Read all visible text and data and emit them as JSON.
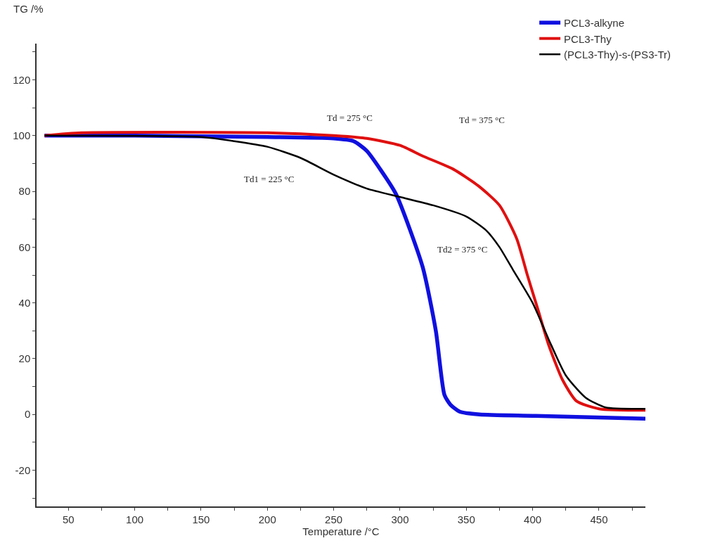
{
  "chart_data": {
    "type": "line",
    "ylabel": "TG /%",
    "xlabel": "Temperature /°C",
    "xlim": [
      26,
      485
    ],
    "ylim": [
      -33,
      133
    ],
    "xticks": [
      {
        "value": 50,
        "label": "50"
      },
      {
        "value": 75,
        "label": null
      },
      {
        "value": 100,
        "label": "100"
      },
      {
        "value": 125,
        "label": null
      },
      {
        "value": 150,
        "label": "150"
      },
      {
        "value": 175,
        "label": null
      },
      {
        "value": 200,
        "label": "200"
      },
      {
        "value": 225,
        "label": null
      },
      {
        "value": 250,
        "label": "250"
      },
      {
        "value": 275,
        "label": null
      },
      {
        "value": 300,
        "label": "300"
      },
      {
        "value": 325,
        "label": null
      },
      {
        "value": 350,
        "label": "350"
      },
      {
        "value": 375,
        "label": null
      },
      {
        "value": 400,
        "label": "400"
      },
      {
        "value": 425,
        "label": null
      },
      {
        "value": 450,
        "label": "450"
      },
      {
        "value": 475,
        "label": null
      }
    ],
    "yticks": [
      {
        "value": -30,
        "label": null
      },
      -20,
      {
        "value": -10,
        "label": null
      },
      0,
      {
        "value": 10,
        "label": null
      },
      20,
      {
        "value": 30,
        "label": null
      },
      40,
      {
        "value": 50,
        "label": null
      },
      60,
      {
        "value": 70,
        "label": null
      },
      80,
      {
        "value": 90,
        "label": null
      },
      100,
      {
        "value": 110,
        "label": null
      },
      120,
      {
        "value": 130,
        "label": null
      }
    ],
    "legend": "top right",
    "marker": "none",
    "line_style": "solid",
    "series": [
      {
        "name": "PCL3-alkyne",
        "color": "#1010e0",
        "x": [
          32,
          100,
          200,
          250,
          265,
          275,
          285,
          297,
          317,
          327,
          333.5,
          338,
          345,
          360,
          400,
          485
        ],
        "values": [
          100,
          100,
          99.5,
          99,
          98,
          94.5,
          88,
          79,
          53,
          30,
          7,
          3.5,
          1,
          0,
          -0.5,
          -1.5
        ]
      },
      {
        "name": "PCL3-Thy",
        "color": "#e01010",
        "x": [
          32,
          60,
          200,
          250,
          275,
          300,
          317,
          340,
          359,
          375,
          388,
          396,
          404,
          412,
          422.5,
          433,
          450,
          485
        ],
        "values": [
          100,
          101,
          101,
          100,
          99,
          96.5,
          92.7,
          88,
          82,
          75,
          63,
          50,
          37.6,
          25,
          12.4,
          4.8,
          2,
          1.5
        ]
      },
      {
        "name": "(PCL3-Thy)-s-(PS3-Tr)",
        "color": "#000000",
        "x": [
          32,
          150,
          175,
          200,
          225,
          250,
          275,
          300,
          325,
          350,
          365,
          375,
          385,
          400,
          412,
          425,
          440,
          455,
          485
        ],
        "values": [
          100,
          99.5,
          98,
          96,
          92,
          86,
          81,
          78,
          75,
          71,
          66,
          60,
          52,
          40,
          27,
          14,
          6,
          2.5,
          2
        ]
      }
    ],
    "annotations": [
      "Td = 275 °C",
      "Td = 375 °C",
      "Td1 = 225 °C",
      "Td2 = 375 °C"
    ]
  }
}
